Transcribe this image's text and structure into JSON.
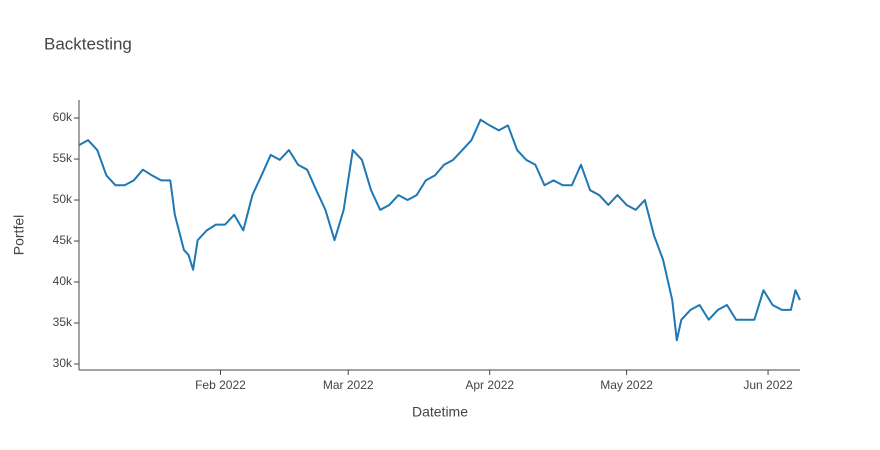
{
  "chart_data": {
    "type": "line",
    "title": "Backtesting",
    "x_label": "Datetime",
    "y_label": "Portfel",
    "x": [
      "2022-01-01",
      "2022-01-03",
      "2022-01-05",
      "2022-01-07",
      "2022-01-09",
      "2022-01-11",
      "2022-01-13",
      "2022-01-15",
      "2022-01-17",
      "2022-01-19",
      "2022-01-21",
      "2022-01-22",
      "2022-01-24",
      "2022-01-25",
      "2022-01-26",
      "2022-01-27",
      "2022-01-29",
      "2022-01-31",
      "2022-02-02",
      "2022-02-04",
      "2022-02-06",
      "2022-02-08",
      "2022-02-10",
      "2022-02-12",
      "2022-02-14",
      "2022-02-16",
      "2022-02-18",
      "2022-02-20",
      "2022-02-22",
      "2022-02-24",
      "2022-02-26",
      "2022-02-28",
      "2022-03-02",
      "2022-03-04",
      "2022-03-06",
      "2022-03-08",
      "2022-03-10",
      "2022-03-12",
      "2022-03-14",
      "2022-03-16",
      "2022-03-18",
      "2022-03-20",
      "2022-03-22",
      "2022-03-24",
      "2022-03-26",
      "2022-03-28",
      "2022-03-30",
      "2022-04-01",
      "2022-04-03",
      "2022-04-05",
      "2022-04-07",
      "2022-04-09",
      "2022-04-11",
      "2022-04-13",
      "2022-04-15",
      "2022-04-17",
      "2022-04-19",
      "2022-04-21",
      "2022-04-23",
      "2022-04-25",
      "2022-04-27",
      "2022-04-29",
      "2022-05-01",
      "2022-05-03",
      "2022-05-05",
      "2022-05-07",
      "2022-05-09",
      "2022-05-11",
      "2022-05-12",
      "2022-05-13",
      "2022-05-15",
      "2022-05-17",
      "2022-05-19",
      "2022-05-21",
      "2022-05-23",
      "2022-05-25",
      "2022-05-27",
      "2022-05-29",
      "2022-05-31",
      "2022-06-02",
      "2022-06-04",
      "2022-06-06",
      "2022-06-07",
      "2022-06-08"
    ],
    "series": [
      {
        "name": "Portfel",
        "color": "#1f77b4",
        "values": [
          56700,
          57300,
          56100,
          53000,
          51800,
          51800,
          52400,
          53700,
          53000,
          52400,
          52400,
          48200,
          43900,
          43300,
          41500,
          45100,
          46300,
          47000,
          47000,
          48200,
          46300,
          50600,
          53000,
          55500,
          54900,
          56100,
          54300,
          53700,
          51200,
          48800,
          45100,
          48800,
          56100,
          54900,
          51200,
          48800,
          49400,
          50600,
          50000,
          50600,
          52400,
          53000,
          54300,
          54900,
          56100,
          57300,
          59800,
          59100,
          58500,
          59100,
          56100,
          54900,
          54300,
          51800,
          52400,
          51800,
          51800,
          54300,
          51200,
          50600,
          49400,
          50600,
          49400,
          48800,
          50000,
          45700,
          42700,
          37800,
          32900,
          35400,
          36600,
          37200,
          35400,
          36600,
          37200,
          35400,
          35400,
          35400,
          39000,
          37200,
          36600,
          36600,
          39000,
          37800
        ]
      }
    ],
    "xlim": [
      "2022-01-01",
      "2022-06-08"
    ],
    "xticks": [
      {
        "value": "2022-02-01",
        "label": "Feb 2022"
      },
      {
        "value": "2022-03-01",
        "label": "Mar 2022"
      },
      {
        "value": "2022-04-01",
        "label": "Apr 2022"
      },
      {
        "value": "2022-05-01",
        "label": "May 2022"
      },
      {
        "value": "2022-06-01",
        "label": "Jun 2022"
      }
    ],
    "ylim": [
      29270,
      62200
    ],
    "yticks": [
      {
        "value": 30000,
        "label": "30k"
      },
      {
        "value": 35000,
        "label": "35k"
      },
      {
        "value": 40000,
        "label": "40k"
      },
      {
        "value": 45000,
        "label": "45k"
      },
      {
        "value": 50000,
        "label": "50k"
      },
      {
        "value": 55000,
        "label": "55k"
      },
      {
        "value": 60000,
        "label": "60k"
      }
    ],
    "grid": false
  }
}
